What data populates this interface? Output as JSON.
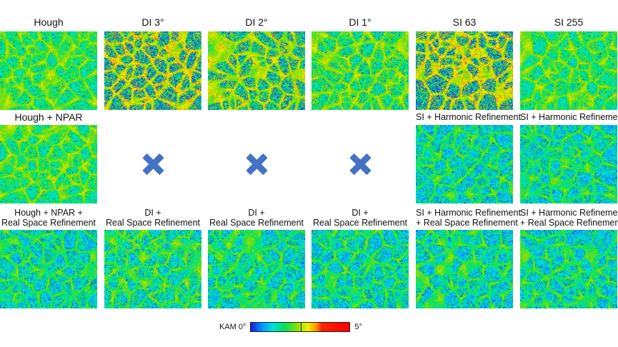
{
  "columns": [
    "Hough",
    "DI 3°",
    "DI 2°",
    "DI 1°",
    "SI 63",
    "SI 255"
  ],
  "row2": {
    "hough_npar": "Hough + NPAR",
    "si63_refine": "SI + Harmonic Refinement",
    "si255_refine": "SI + Harmonic Refinement"
  },
  "row3": {
    "hough": [
      "Hough + NPAR +",
      "Real Space Refinement"
    ],
    "di3": [
      "DI +",
      "Real Space Refinement"
    ],
    "di2": [
      "DI +",
      "Real Space Refinement"
    ],
    "di1": [
      "DI +",
      "Real Space Refinement"
    ],
    "si63": [
      "SI + Harmonic Refinement",
      "+ Real Space Refinement"
    ],
    "si255": [
      "SI + Harmonic Refinement",
      "+ Real Space Refinement"
    ]
  },
  "legend": {
    "min_label": "KAM 0°",
    "max_label": "5°"
  },
  "colors": {
    "marker_blue": "#4472c4",
    "colormap": [
      "#1a1ae0",
      "#0099ff",
      "#00e0e0",
      "#00e060",
      "#90e000",
      "#f0f000",
      "#ff9900",
      "#ff0000"
    ]
  }
}
